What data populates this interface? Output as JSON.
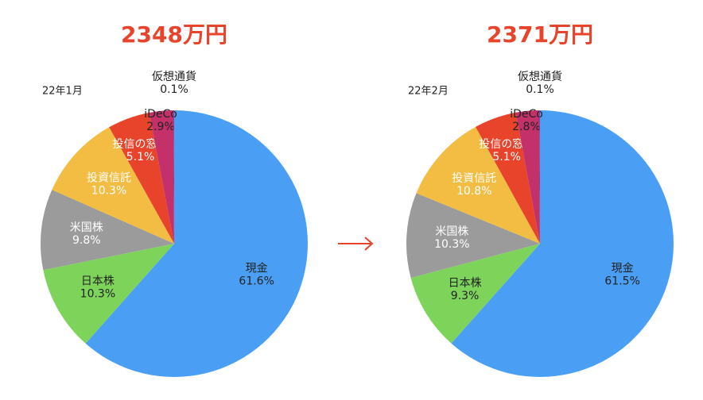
{
  "chart_data": [
    {
      "type": "pie",
      "title": "2348万円",
      "subtitle": "22年1月",
      "categories": [
        "現金",
        "日本株",
        "米国株",
        "投資信託",
        "投信の窓口",
        "iDeCo",
        "仮想通貨"
      ],
      "values": [
        61.6,
        10.3,
        9.8,
        10.3,
        5.1,
        2.9,
        0.1
      ],
      "value_labels": [
        "61.6%",
        "10.3%",
        "9.8%",
        "10.3%",
        "5.1%",
        "2.9%",
        "0.1%"
      ],
      "colors": [
        "#4a9ff5",
        "#7ed35a",
        "#9b9b9b",
        "#f2bd42",
        "#e8442c",
        "#c3306a",
        "#8a3d9c"
      ],
      "label_colors": [
        "#222222",
        "#222222",
        "#ffffff",
        "#ffffff",
        "#ffffff",
        "#222222",
        "#222222"
      ]
    },
    {
      "type": "pie",
      "title": "2371万円",
      "subtitle": "22年2月",
      "categories": [
        "現金",
        "日本株",
        "米国株",
        "投資信託",
        "投信の窓口",
        "iDeCo",
        "仮想通貨"
      ],
      "values": [
        61.5,
        9.3,
        10.3,
        10.8,
        5.1,
        2.8,
        0.1
      ],
      "value_labels": [
        "61.5%",
        "9.3%",
        "10.3%",
        "10.8%",
        "5.1%",
        "2.8%",
        "0.1%"
      ],
      "colors": [
        "#4a9ff5",
        "#7ed35a",
        "#9b9b9b",
        "#f2bd42",
        "#e8442c",
        "#c3306a",
        "#8a3d9c"
      ],
      "label_colors": [
        "#222222",
        "#222222",
        "#ffffff",
        "#ffffff",
        "#ffffff",
        "#222222",
        "#222222"
      ]
    }
  ]
}
